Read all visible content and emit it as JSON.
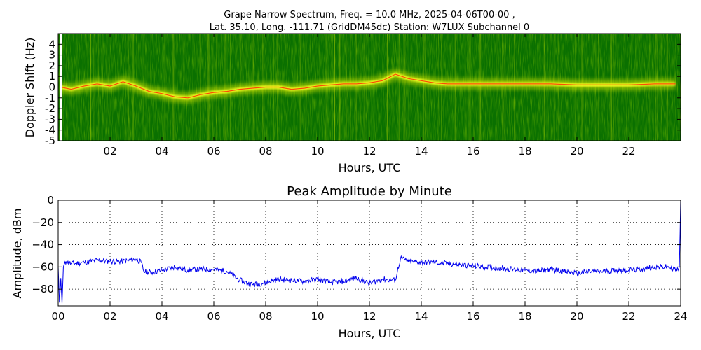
{
  "chart_data": [
    {
      "type": "heatmap",
      "title_line1": "Grape Narrow Spectrum, Freq. = 10.0 MHz, 2025-04-06T00-00 ,",
      "title_line2": "Lat.  35.10, Long. -111.71 (GridDM45dc) Station: W7LUX Subchannel 0",
      "xlabel": "Hours, UTC",
      "ylabel": "Doppler Shift (Hz)",
      "xlim": [
        0,
        24
      ],
      "ylim": [
        -5,
        5
      ],
      "x_ticks": [
        2,
        4,
        6,
        8,
        10,
        12,
        14,
        16,
        18,
        20,
        22
      ],
      "x_tick_labels": [
        "02",
        "04",
        "06",
        "08",
        "10",
        "12",
        "14",
        "16",
        "18",
        "20",
        "22"
      ],
      "y_ticks": [
        4,
        3,
        2,
        1,
        0,
        -1,
        -2,
        -3,
        -4,
        -5
      ],
      "y_tick_labels": [
        "4",
        "3",
        "2",
        "1",
        "0",
        "-1",
        "-2",
        "-3",
        "-4",
        "-5"
      ],
      "colors": {
        "background": "#0a7000",
        "mid": "#3f9a00",
        "trace_outer": "#c8e000",
        "trace": "#ffff20",
        "peak": "#ff2000"
      },
      "trace": {
        "x": [
          0.1,
          0.5,
          1.0,
          1.5,
          2.0,
          2.5,
          3.0,
          3.5,
          4.0,
          4.5,
          5.0,
          5.5,
          6.0,
          6.5,
          7.0,
          7.5,
          8.0,
          8.5,
          9.0,
          9.5,
          10.0,
          10.5,
          11.0,
          11.5,
          12.0,
          12.5,
          13.0,
          13.5,
          14.0,
          14.5,
          15.0,
          16.0,
          17.0,
          18.0,
          19.0,
          20.0,
          21.0,
          22.0,
          23.0,
          23.8
        ],
        "y": [
          0.0,
          -0.2,
          0.1,
          0.3,
          0.1,
          0.5,
          0.1,
          -0.4,
          -0.6,
          -0.9,
          -1.0,
          -0.7,
          -0.5,
          -0.4,
          -0.2,
          -0.1,
          0.0,
          0.0,
          -0.2,
          -0.1,
          0.1,
          0.2,
          0.3,
          0.3,
          0.4,
          0.6,
          1.2,
          0.8,
          0.6,
          0.4,
          0.3,
          0.3,
          0.3,
          0.3,
          0.3,
          0.2,
          0.2,
          0.2,
          0.3,
          0.3
        ]
      }
    },
    {
      "type": "line",
      "title": "Peak Amplitude by Minute",
      "xlabel": "Hours, UTC",
      "ylabel": "Amplitude, dBm",
      "xlim": [
        0,
        24
      ],
      "ylim": [
        -95,
        0
      ],
      "x_ticks": [
        0,
        2,
        4,
        6,
        8,
        10,
        12,
        14,
        16,
        18,
        20,
        22,
        24
      ],
      "x_tick_labels": [
        "00",
        "02",
        "04",
        "06",
        "08",
        "10",
        "12",
        "14",
        "16",
        "18",
        "20",
        "22",
        "24"
      ],
      "y_ticks": [
        0,
        -20,
        -40,
        -60,
        -80
      ],
      "y_tick_labels": [
        "0",
        "−20",
        "−40",
        "−60",
        "−80"
      ],
      "grid": true,
      "line_color": "#0000ee",
      "series": [
        {
          "x": [
            0.0,
            0.05,
            0.1,
            0.15,
            0.2,
            0.3,
            0.5,
            1.0,
            1.5,
            2.0,
            2.5,
            3.0,
            3.2,
            3.3,
            3.6,
            4.0,
            4.5,
            5.0,
            5.5,
            6.0,
            6.5,
            7.0,
            7.5,
            8.0,
            8.5,
            9.0,
            9.5,
            10.0,
            10.5,
            11.0,
            11.5,
            12.0,
            12.5,
            13.0,
            13.2,
            13.5,
            14.0,
            14.5,
            15.0,
            15.5,
            16.0,
            16.5,
            17.0,
            17.5,
            18.0,
            18.5,
            19.0,
            19.5,
            20.0,
            20.5,
            21.0,
            21.5,
            22.0,
            22.5,
            23.0,
            23.5,
            23.9,
            23.95,
            24.0
          ],
          "y": [
            -60,
            -92,
            -70,
            -93,
            -60,
            -55,
            -57,
            -56,
            -54,
            -55,
            -55,
            -53,
            -56,
            -64,
            -65,
            -63,
            -60,
            -63,
            -62,
            -62,
            -64,
            -72,
            -76,
            -74,
            -71,
            -72,
            -73,
            -71,
            -74,
            -73,
            -70,
            -75,
            -71,
            -72,
            -52,
            -55,
            -56,
            -56,
            -57,
            -58,
            -59,
            -60,
            -61,
            -62,
            -63,
            -64,
            -62,
            -64,
            -66,
            -64,
            -64,
            -63,
            -63,
            -62,
            -60,
            -60,
            -63,
            -60,
            0
          ]
        }
      ]
    }
  ]
}
